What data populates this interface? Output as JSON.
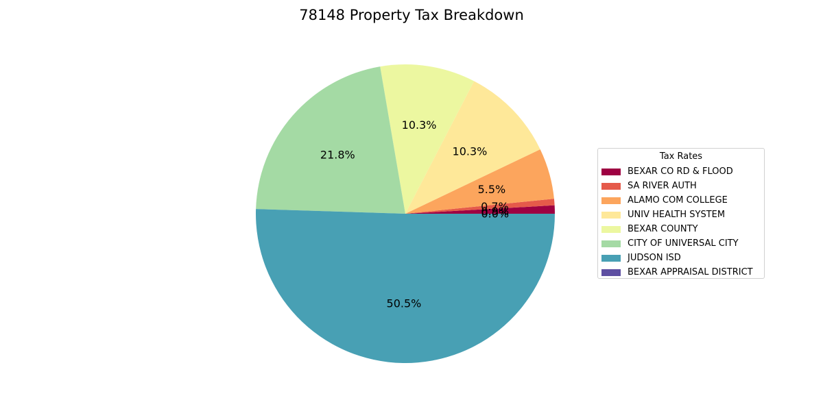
{
  "chart_data": {
    "type": "pie",
    "title": "78148 Property Tax Breakdown",
    "legend_title": "Tax Rates",
    "legend_position": "right",
    "start_angle": 0,
    "direction": "counterclockwise",
    "slices": [
      {
        "label": "BEXAR CO RD & FLOOD",
        "value": 0.9,
        "display": "0.9%",
        "color": "#9e0142"
      },
      {
        "label": "SA RIVER AUTH",
        "value": 0.7,
        "display": "0.7%",
        "color": "#e55a4a"
      },
      {
        "label": "ALAMO COM COLLEGE",
        "value": 5.5,
        "display": "5.5%",
        "color": "#fca55d"
      },
      {
        "label": "UNIV HEALTH SYSTEM",
        "value": 10.3,
        "display": "10.3%",
        "color": "#fee899"
      },
      {
        "label": "BEXAR COUNTY",
        "value": 10.3,
        "display": "10.3%",
        "color": "#ecf7a0"
      },
      {
        "label": "CITY OF UNIVERSAL CITY",
        "value": 21.8,
        "display": "21.8%",
        "color": "#a4daa4"
      },
      {
        "label": "JUDSON ISD",
        "value": 50.5,
        "display": "50.5%",
        "color": "#48a0b4"
      },
      {
        "label": "BEXAR APPRAISAL DISTRICT",
        "value": 0.0,
        "display": "0.0%",
        "color": "#5e4fa2"
      }
    ]
  }
}
